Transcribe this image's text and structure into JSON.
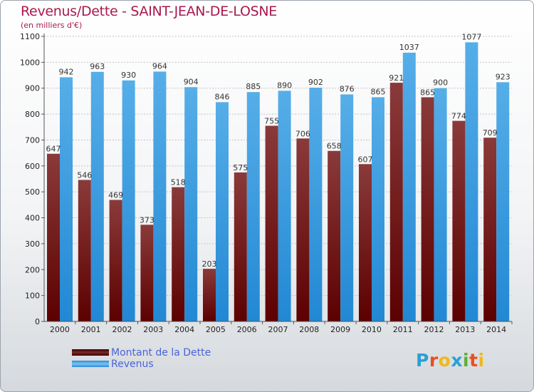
{
  "title": "Revenus/Dette - SAINT-JEAN-DE-LOSNE",
  "subtitle": "(en milliers d'€)",
  "legend": {
    "debt_label": "Montant de la Dette",
    "revenue_label": "Revenus"
  },
  "logo": {
    "text": "Proxiti",
    "letters": [
      "P",
      "r",
      "o",
      "x",
      "i",
      "t",
      "i"
    ]
  },
  "colors": {
    "debt_dark": "#5c0000",
    "debt_light": "#8a3a3a",
    "revenue_dark": "#1e7fc8",
    "revenue_light": "#56aee8",
    "title": "#a8194f",
    "legend_text": "#4a63d8"
  },
  "chart_data": {
    "type": "bar",
    "title": "Revenus/Dette - SAINT-JEAN-DE-LOSNE",
    "subtitle": "(en milliers d'€)",
    "xlabel": "",
    "ylabel": "",
    "ylim": [
      0,
      1100
    ],
    "yticks": [
      0,
      100,
      200,
      300,
      400,
      500,
      600,
      700,
      800,
      900,
      1000,
      1100
    ],
    "grid": true,
    "legend_position": "bottom-left",
    "categories": [
      "2000",
      "2001",
      "2002",
      "2003",
      "2004",
      "2005",
      "2006",
      "2007",
      "2008",
      "2009",
      "2010",
      "2011",
      "2012",
      "2013",
      "2014"
    ],
    "series": [
      {
        "name": "Montant de la Dette",
        "values": [
          647,
          546,
          469,
          373,
          518,
          203,
          575,
          755,
          706,
          658,
          607,
          921,
          865,
          774,
          709
        ]
      },
      {
        "name": "Revenus",
        "values": [
          942,
          963,
          930,
          964,
          904,
          846,
          885,
          890,
          902,
          876,
          865,
          1037,
          900,
          1077,
          923
        ]
      }
    ]
  }
}
